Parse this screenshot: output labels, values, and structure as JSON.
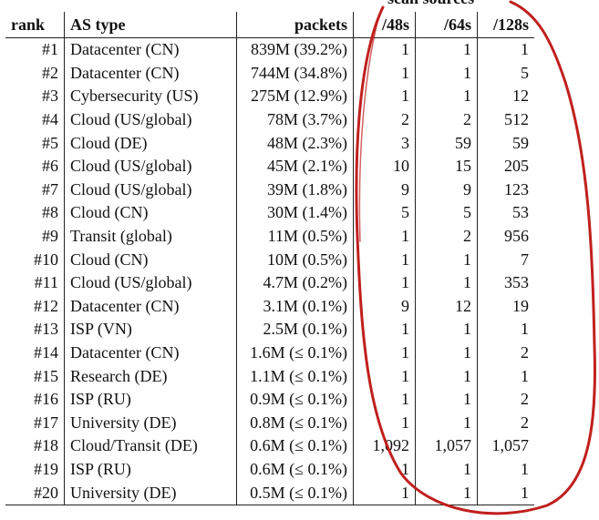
{
  "group_header": "scan sources",
  "columns": {
    "rank": "rank",
    "as_type": "AS type",
    "packets": "packets",
    "s48": "/48s",
    "s64": "/64s",
    "s128": "/128s"
  },
  "rows": [
    {
      "rank": "#1",
      "as_type": "Datacenter (CN)",
      "packets": "839M (39.2%)",
      "s48": "1",
      "s64": "1",
      "s128": "1"
    },
    {
      "rank": "#2",
      "as_type": "Datacenter (CN)",
      "packets": "744M (34.8%)",
      "s48": "1",
      "s64": "1",
      "s128": "5"
    },
    {
      "rank": "#3",
      "as_type": "Cybersecurity (US)",
      "packets": "275M (12.9%)",
      "s48": "1",
      "s64": "1",
      "s128": "12"
    },
    {
      "rank": "#4",
      "as_type": "Cloud (US/global)",
      "packets": "78M (3.7%)",
      "s48": "2",
      "s64": "2",
      "s128": "512"
    },
    {
      "rank": "#5",
      "as_type": "Cloud (DE)",
      "packets": "48M (2.3%)",
      "s48": "3",
      "s64": "59",
      "s128": "59"
    },
    {
      "rank": "#6",
      "as_type": "Cloud (US/global)",
      "packets": "45M (2.1%)",
      "s48": "10",
      "s64": "15",
      "s128": "205"
    },
    {
      "rank": "#7",
      "as_type": "Cloud (US/global)",
      "packets": "39M (1.8%)",
      "s48": "9",
      "s64": "9",
      "s128": "123"
    },
    {
      "rank": "#8",
      "as_type": "Cloud (CN)",
      "packets": "30M (1.4%)",
      "s48": "5",
      "s64": "5",
      "s128": "53"
    },
    {
      "rank": "#9",
      "as_type": "Transit (global)",
      "packets": "11M (0.5%)",
      "s48": "1",
      "s64": "2",
      "s128": "956"
    },
    {
      "rank": "#10",
      "as_type": "Cloud (CN)",
      "packets": "10M (0.5%)",
      "s48": "1",
      "s64": "1",
      "s128": "7"
    },
    {
      "rank": "#11",
      "as_type": "Cloud (US/global)",
      "packets": "4.7M (0.2%)",
      "s48": "1",
      "s64": "1",
      "s128": "353"
    },
    {
      "rank": "#12",
      "as_type": "Datacenter (CN)",
      "packets": "3.1M (0.1%)",
      "s48": "9",
      "s64": "12",
      "s128": "19"
    },
    {
      "rank": "#13",
      "as_type": "ISP (VN)",
      "packets": "2.5M (0.1%)",
      "s48": "1",
      "s64": "1",
      "s128": "1"
    },
    {
      "rank": "#14",
      "as_type": "Datacenter (CN)",
      "packets": "1.6M (≤ 0.1%)",
      "s48": "1",
      "s64": "1",
      "s128": "2"
    },
    {
      "rank": "#15",
      "as_type": "Research (DE)",
      "packets": "1.1M (≤ 0.1%)",
      "s48": "1",
      "s64": "1",
      "s128": "1"
    },
    {
      "rank": "#16",
      "as_type": "ISP (RU)",
      "packets": "0.9M (≤ 0.1%)",
      "s48": "1",
      "s64": "1",
      "s128": "2"
    },
    {
      "rank": "#17",
      "as_type": "University (DE)",
      "packets": "0.8M (≤ 0.1%)",
      "s48": "1",
      "s64": "1",
      "s128": "2"
    },
    {
      "rank": "#18",
      "as_type": "Cloud/Transit (DE)",
      "packets": "0.6M (≤ 0.1%)",
      "s48": "1,092",
      "s64": "1,057",
      "s128": "1,057"
    },
    {
      "rank": "#19",
      "as_type": "ISP (RU)",
      "packets": "0.6M (≤ 0.1%)",
      "s48": "1",
      "s64": "1",
      "s128": "1"
    },
    {
      "rank": "#20",
      "as_type": "University (DE)",
      "packets": "0.5M (≤ 0.1%)",
      "s48": "1",
      "s64": "1",
      "s128": "1"
    }
  ],
  "colors": {
    "annotation": "#c0201e",
    "text": "#111111"
  }
}
